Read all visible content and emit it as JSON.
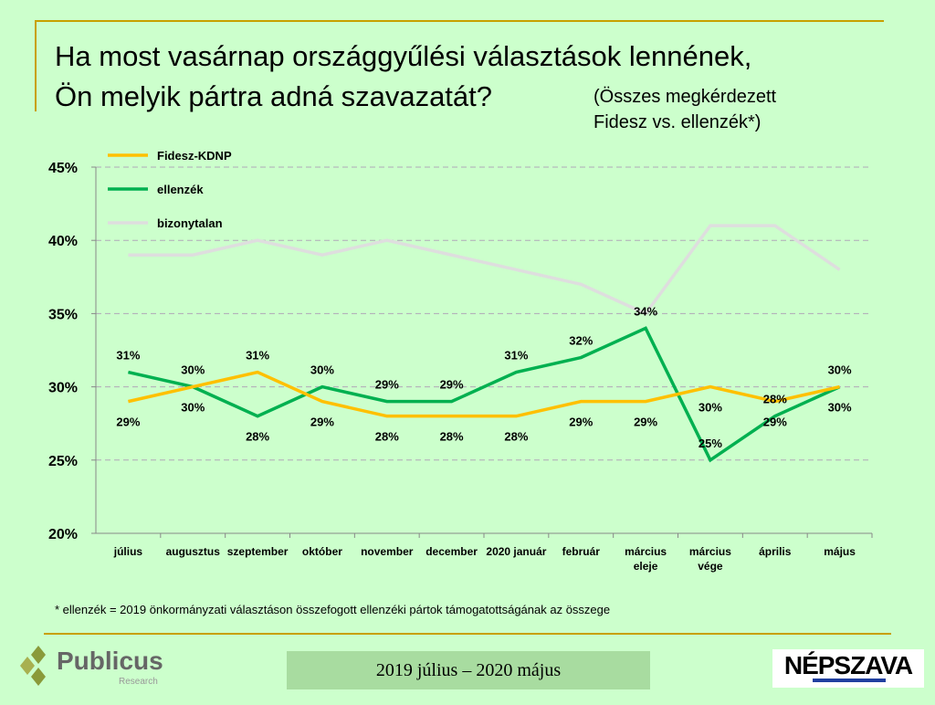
{
  "title": {
    "line1": "Ha most vasárnap országgyűlési választások lennének,",
    "line2": "Ön melyik pártra adná szavazatát?",
    "subtitle1": "(Összes megkérdezett",
    "subtitle2": "Fidesz vs. ellenzék*)"
  },
  "footnote": "* ellenzék = 2019 önkormányzati választáson összefogott ellenzéki pártok támogatottságának az összege",
  "period": "2019 július – 2020 május",
  "logos": {
    "left": "Publicus",
    "left_sub": "Research",
    "right": "NÉPSZAVA"
  },
  "chart_data": {
    "type": "line",
    "categories": [
      "július",
      "augusztus",
      "szeptember",
      "október",
      "november",
      "december",
      "2020 január",
      "február",
      "március eleje",
      "március vége",
      "április",
      "május"
    ],
    "ylim": [
      20,
      45
    ],
    "yticks": [
      "20%",
      "25%",
      "30%",
      "35%",
      "40%",
      "45%"
    ],
    "grid": true,
    "legend_placement": "top-left",
    "series": [
      {
        "name": "Fidesz-KDNP",
        "color": "#ffc000",
        "values": [
          29,
          30,
          31,
          29,
          28,
          28,
          28,
          29,
          29,
          30,
          29,
          30
        ],
        "labels": true,
        "label_pos": "below"
      },
      {
        "name": "ellenzék",
        "color": "#00b050",
        "values": [
          31,
          30,
          28,
          30,
          29,
          29,
          31,
          32,
          34,
          25,
          28,
          30
        ],
        "labels": true,
        "label_pos": "above"
      },
      {
        "name": "bizonytalan",
        "color": "#dedede",
        "values": [
          39,
          39,
          40,
          39,
          40,
          39,
          38,
          37,
          35,
          41,
          41,
          38
        ],
        "labels": false
      }
    ]
  }
}
